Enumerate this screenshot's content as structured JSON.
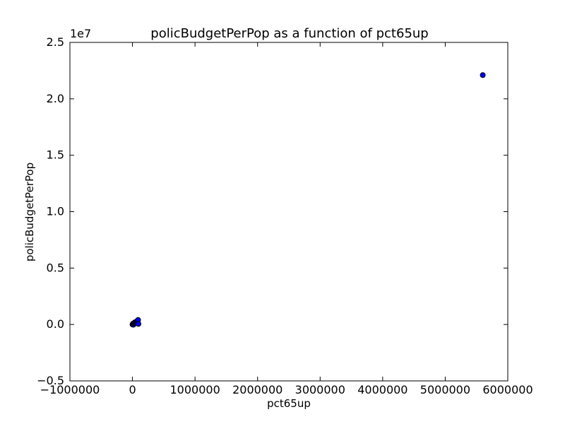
{
  "chart_data": {
    "type": "scatter",
    "title": "policBudgetPerPop as a function of pct65up",
    "xlabel": "pct65up",
    "ylabel": "policBudgetPerPop",
    "xlim": [
      -1000000,
      6000000
    ],
    "ylim": [
      -0.5,
      2.5
    ],
    "y_offset_label": "1e7",
    "y_scale_factor": 10000000,
    "x_tick_values": [
      -1000000,
      0,
      1000000,
      2000000,
      3000000,
      4000000,
      5000000,
      6000000
    ],
    "x_tick_labels": [
      "−1000000",
      "0",
      "1000000",
      "2000000",
      "3000000",
      "4000000",
      "5000000",
      "6000000"
    ],
    "y_tick_values": [
      -0.5,
      0.0,
      0.5,
      1.0,
      1.5,
      2.0,
      2.5
    ],
    "y_tick_labels": [
      "−0.5",
      "0.0",
      "0.5",
      "1.0",
      "1.5",
      "2.0",
      "2.5"
    ],
    "grid": false,
    "marker_color": "#0000ff",
    "marker_edge_color": "#000000",
    "points": [
      {
        "x": 5600000,
        "y": 2.21
      },
      {
        "x": 0,
        "y": 0.0
      },
      {
        "x": 5000,
        "y": 0.003
      },
      {
        "x": 10000,
        "y": 0.008
      },
      {
        "x": 15000,
        "y": -0.002
      },
      {
        "x": 20000,
        "y": 0.01
      },
      {
        "x": 30000,
        "y": 0.015
      },
      {
        "x": 40000,
        "y": 0.02
      },
      {
        "x": 50000,
        "y": 0.012
      },
      {
        "x": 60000,
        "y": 0.018
      },
      {
        "x": 70000,
        "y": 0.025
      },
      {
        "x": 80000,
        "y": 0.035
      },
      {
        "x": 90000,
        "y": 0.04
      },
      {
        "x": 95000,
        "y": 0.005
      }
    ]
  }
}
